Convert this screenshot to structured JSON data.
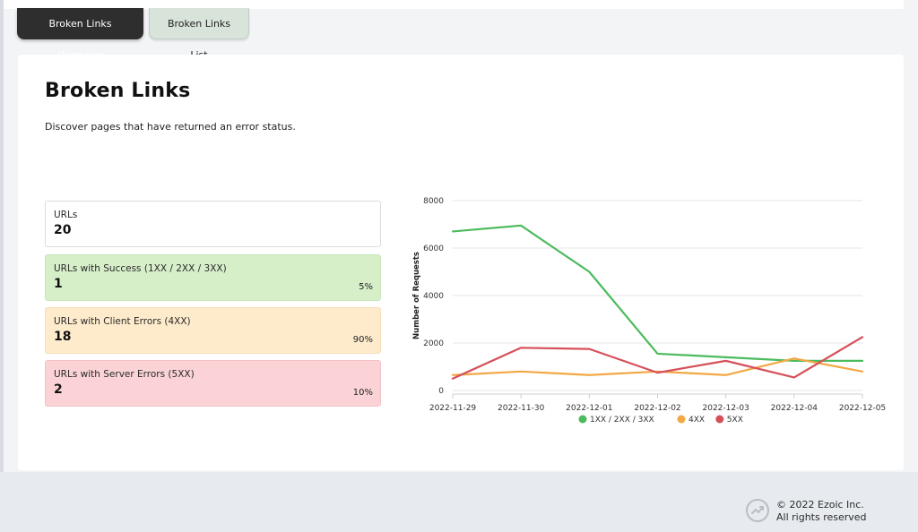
{
  "tabs": [
    {
      "label": "Broken Links Overview",
      "active": true
    },
    {
      "label": "Broken Links List",
      "active": false
    }
  ],
  "header": {
    "title": "Broken Links",
    "description": "Discover pages that have returned an error status."
  },
  "stats": {
    "urls": {
      "label": "URLs",
      "value": "20"
    },
    "success": {
      "label": "URLs with Success (1XX / 2XX / 3XX)",
      "value": "1",
      "percent": "5%"
    },
    "client": {
      "label": "URLs with Client Errors (4XX)",
      "value": "18",
      "percent": "90%"
    },
    "server": {
      "label": "URLs with Server Errors (5XX)",
      "value": "2",
      "percent": "10%"
    }
  },
  "chart_data": {
    "type": "line",
    "x": [
      "2022-11-29",
      "2022-11-30",
      "2022-12-01",
      "2022-12-02",
      "2022-12-03",
      "2022-12-04",
      "2022-12-05"
    ],
    "ylabel": "Number of Requests",
    "xlabel": "",
    "ylim": [
      0,
      8000
    ],
    "yticks": [
      "0",
      "2000",
      "4000",
      "6000",
      "8000"
    ],
    "grid": "horizontal",
    "legend_position": "bottom",
    "series": [
      {
        "name": "1XX / 2XX / 3XX",
        "color": "#4cbb5d",
        "values": [
          6700,
          6950,
          5000,
          1550,
          1400,
          1250,
          1250
        ]
      },
      {
        "name": "4XX",
        "color": "#f2a844",
        "values": [
          650,
          800,
          650,
          800,
          650,
          1350,
          800
        ]
      },
      {
        "name": "5XX",
        "color": "#d6505a",
        "values": [
          500,
          1800,
          1750,
          750,
          1250,
          550,
          2250
        ]
      }
    ]
  },
  "footer": {
    "copyright": "© 2022 Ezoic Inc.",
    "rights": "All rights reserved",
    "logo_icon": "ezoic-logo-icon"
  }
}
